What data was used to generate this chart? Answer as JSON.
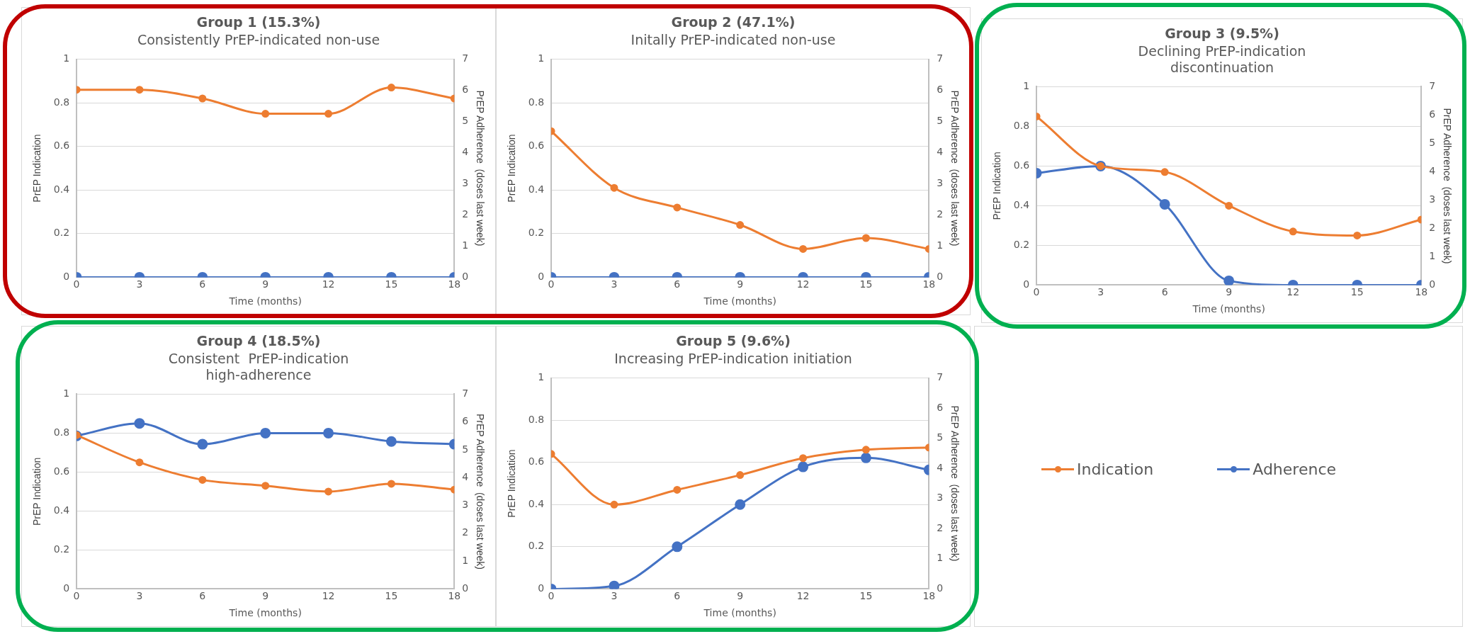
{
  "chart_data": [
    {
      "type": "line",
      "title": "Group 1 (15.3%)",
      "subtitle": "Consistently PrEP-indicated non-use",
      "xlabel": "Time (months)",
      "ylabel": "PrEP Indication",
      "y2label": "PrEP Adherence  (doses last week)",
      "x": [
        0,
        3,
        6,
        9,
        12,
        15,
        18
      ],
      "xlim": [
        0,
        18
      ],
      "xticks": [
        0,
        3,
        6,
        9,
        12,
        15,
        18
      ],
      "ylim": [
        0,
        1
      ],
      "yticks": [
        0,
        0.2,
        0.4,
        0.6,
        0.8,
        1
      ],
      "y2lim": [
        0,
        7
      ],
      "y2ticks": [
        0,
        1,
        2,
        3,
        4,
        5,
        6,
        7
      ],
      "grid": "y",
      "legend": false,
      "marker": "circle",
      "line_style": "solid",
      "series": [
        {
          "color": "#ed7d31",
          "values": [
            0.86,
            0.86,
            0.82,
            0.75,
            0.75,
            0.87,
            0.82
          ]
        },
        {
          "color": "#4472c4",
          "axis": "y2",
          "values": [
            0,
            0,
            0,
            0,
            0,
            0,
            0
          ]
        }
      ]
    },
    {
      "type": "line",
      "title": "Group 2 (47.1%)",
      "subtitle": "Initally PrEP-indicated non-use",
      "xlabel": "Time (months)",
      "ylabel": "PrEP Indication",
      "y2label": "PrEP Adherence  (doses last week)",
      "x": [
        0,
        3,
        6,
        9,
        12,
        15,
        18
      ],
      "xlim": [
        0,
        18
      ],
      "xticks": [
        0,
        3,
        6,
        9,
        12,
        15,
        18
      ],
      "ylim": [
        0,
        1
      ],
      "yticks": [
        0,
        0.2,
        0.4,
        0.6,
        0.8,
        1
      ],
      "y2lim": [
        0,
        7
      ],
      "y2ticks": [
        0,
        1,
        2,
        3,
        4,
        5,
        6,
        7
      ],
      "grid": "y",
      "legend": false,
      "marker": "circle",
      "line_style": "solid",
      "series": [
        {
          "color": "#ed7d31",
          "values": [
            0.67,
            0.41,
            0.32,
            0.24,
            0.13,
            0.18,
            0.13
          ]
        },
        {
          "color": "#4472c4",
          "axis": "y2",
          "values": [
            0,
            0,
            0,
            0,
            0,
            0,
            0
          ]
        }
      ]
    },
    {
      "type": "line",
      "title": "Group 3 (9.5%)",
      "subtitle": "Declining PrEP-indication discontinuation",
      "xlabel": "Time (months)",
      "ylabel": "PrEP Indication",
      "y2label": "PrEP Adherence  (doses last week)",
      "x": [
        0,
        3,
        6,
        9,
        12,
        15,
        18
      ],
      "xlim": [
        0,
        18
      ],
      "xticks": [
        0,
        3,
        6,
        9,
        12,
        15,
        18
      ],
      "ylim": [
        0,
        1
      ],
      "yticks": [
        0,
        0.2,
        0.4,
        0.6,
        0.8,
        1
      ],
      "y2lim": [
        0,
        7
      ],
      "y2ticks": [
        0,
        1,
        2,
        3,
        4,
        5,
        6,
        7
      ],
      "grid": "y",
      "legend": false,
      "marker": "circle",
      "line_style": "solid",
      "series": [
        {
          "color": "#ed7d31",
          "values": [
            0.85,
            0.6,
            0.57,
            0.4,
            0.27,
            0.25,
            0.33
          ]
        },
        {
          "color": "#4472c4",
          "axis": "y2",
          "values": [
            3.95,
            4.2,
            2.85,
            0.15,
            0,
            0,
            0
          ]
        }
      ]
    },
    {
      "type": "line",
      "title": "Group 4 (18.5%)",
      "subtitle": "Consistent  PrEP-indication high-adherence",
      "xlabel": "Time (months)",
      "ylabel": "PrEP Indication",
      "y2label": "PrEP Adherence  (doses last week)",
      "x": [
        0,
        3,
        6,
        9,
        12,
        15,
        18
      ],
      "xlim": [
        0,
        18
      ],
      "xticks": [
        0,
        3,
        6,
        9,
        12,
        15,
        18
      ],
      "ylim": [
        0,
        1
      ],
      "yticks": [
        0,
        0.2,
        0.4,
        0.6,
        0.8,
        1
      ],
      "y2lim": [
        0,
        7
      ],
      "y2ticks": [
        0,
        1,
        2,
        3,
        4,
        5,
        6,
        7
      ],
      "grid": "y",
      "legend": false,
      "marker": "circle",
      "line_style": "solid",
      "series": [
        {
          "color": "#ed7d31",
          "values": [
            0.79,
            0.65,
            0.56,
            0.53,
            0.5,
            0.54,
            0.51
          ]
        },
        {
          "color": "#4472c4",
          "axis": "y2",
          "values": [
            5.5,
            5.95,
            5.2,
            5.6,
            5.6,
            5.3,
            5.2
          ]
        }
      ]
    },
    {
      "type": "line",
      "title": "Group 5 (9.6%)",
      "subtitle": "Increasing PrEP-indication initiation",
      "xlabel": "Time (months)",
      "ylabel": "PrEP Indication",
      "y2label": "PrEP Adherence  (doses last week)",
      "x": [
        0,
        3,
        6,
        9,
        12,
        15,
        18
      ],
      "xlim": [
        0,
        18
      ],
      "xticks": [
        0,
        3,
        6,
        9,
        12,
        15,
        18
      ],
      "ylim": [
        0,
        1
      ],
      "yticks": [
        0,
        0.2,
        0.4,
        0.6,
        0.8,
        1
      ],
      "y2lim": [
        0,
        7
      ],
      "y2ticks": [
        0,
        1,
        2,
        3,
        4,
        5,
        6,
        7
      ],
      "grid": "y",
      "legend": "right",
      "marker": "circle",
      "line_style": "solid",
      "series": [
        {
          "name": "Indication",
          "color": "#ed7d31",
          "values": [
            0.64,
            0.4,
            0.47,
            0.54,
            0.62,
            0.66,
            0.67
          ]
        },
        {
          "name": "Adherence",
          "color": "#4472c4",
          "axis": "y2",
          "values": [
            0,
            0.1,
            1.4,
            2.8,
            4.05,
            4.35,
            3.95
          ]
        }
      ]
    }
  ]
}
